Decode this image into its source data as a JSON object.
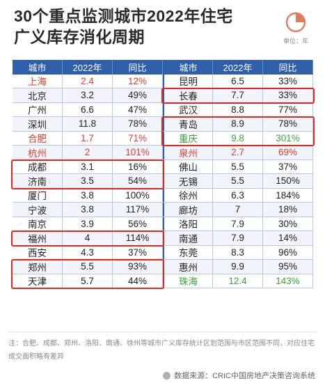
{
  "title": {
    "line1": "30个重点监测城市2022年住宅",
    "line2": "广义库存消化周期"
  },
  "unit_label": "单位：年",
  "chart_data": {
    "type": "table",
    "columns": [
      "城市",
      "2022年",
      "同比",
      "城市",
      "2022年",
      "同比"
    ],
    "left": [
      {
        "city": "上海",
        "value": "2.4",
        "yoy": "12%",
        "color": "red"
      },
      {
        "city": "北京",
        "value": "3.2",
        "yoy": "49%",
        "color": ""
      },
      {
        "city": "广州",
        "value": "6.6",
        "yoy": "47%",
        "color": ""
      },
      {
        "city": "深圳",
        "value": "11.8",
        "yoy": "78%",
        "color": ""
      },
      {
        "city": "合肥",
        "value": "1.7",
        "yoy": "71%",
        "color": "red"
      },
      {
        "city": "杭州",
        "value": "2",
        "yoy": "101%",
        "color": "red"
      },
      {
        "city": "成都",
        "value": "3.1",
        "yoy": "16%",
        "color": ""
      },
      {
        "city": "济南",
        "value": "3.5",
        "yoy": "54%",
        "color": ""
      },
      {
        "city": "厦门",
        "value": "3.8",
        "yoy": "100%",
        "color": ""
      },
      {
        "city": "宁波",
        "value": "3.8",
        "yoy": "117%",
        "color": ""
      },
      {
        "city": "南京",
        "value": "3.9",
        "yoy": "56%",
        "color": ""
      },
      {
        "city": "福州",
        "value": "4",
        "yoy": "114%",
        "color": ""
      },
      {
        "city": "西安",
        "value": "4.3",
        "yoy": "37%",
        "color": ""
      },
      {
        "city": "郑州",
        "value": "5.5",
        "yoy": "93%",
        "color": ""
      },
      {
        "city": "天津",
        "value": "5.7",
        "yoy": "44%",
        "color": ""
      }
    ],
    "right": [
      {
        "city": "昆明",
        "value": "6.5",
        "yoy": "33%",
        "color": ""
      },
      {
        "city": "长春",
        "value": "7.7",
        "yoy": "33%",
        "color": ""
      },
      {
        "city": "武汉",
        "value": "8.8",
        "yoy": "77%",
        "color": ""
      },
      {
        "city": "青岛",
        "value": "8.9",
        "yoy": "78%",
        "color": ""
      },
      {
        "city": "重庆",
        "value": "9.8",
        "yoy": "301%",
        "color": "green"
      },
      {
        "city": "泉州",
        "value": "2.7",
        "yoy": "69%",
        "color": "red"
      },
      {
        "city": "佛山",
        "value": "5.5",
        "yoy": "37%",
        "color": ""
      },
      {
        "city": "无锡",
        "value": "5.5",
        "yoy": "150%",
        "color": ""
      },
      {
        "city": "徐州",
        "value": "6.3",
        "yoy": "184%",
        "color": ""
      },
      {
        "city": "廊坊",
        "value": "7",
        "yoy": "18%",
        "color": ""
      },
      {
        "city": "洛阳",
        "value": "7.9",
        "yoy": "30%",
        "color": ""
      },
      {
        "city": "南通",
        "value": "7.9",
        "yoy": "14%",
        "color": ""
      },
      {
        "city": "东莞",
        "value": "8.3",
        "yoy": "96%",
        "color": ""
      },
      {
        "city": "惠州",
        "value": "9.9",
        "yoy": "95%",
        "color": ""
      },
      {
        "city": "珠海",
        "value": "12.4",
        "yoy": "143%",
        "color": "green"
      }
    ],
    "highlights": [
      {
        "side": "left",
        "rows": [
          6,
          7
        ]
      },
      {
        "side": "left",
        "rows": [
          11
        ]
      },
      {
        "side": "left",
        "rows": [
          13,
          14
        ]
      },
      {
        "side": "right",
        "rows": [
          1
        ]
      },
      {
        "side": "right",
        "rows": [
          3,
          4
        ]
      }
    ]
  },
  "colors": {
    "header_bg": "#2f5fa9",
    "highlight": "#e8261d",
    "red_text": "#e23b2e",
    "green_text": "#3aa53c"
  },
  "note": "注：合肥、成都、郑州、洛阳、南通、徐州等城市广义库存统计区划范围与市区范围不同，对应住宅成交面积略有差异",
  "source": "数据来源：CRIC中国房地产决策咨询系统"
}
